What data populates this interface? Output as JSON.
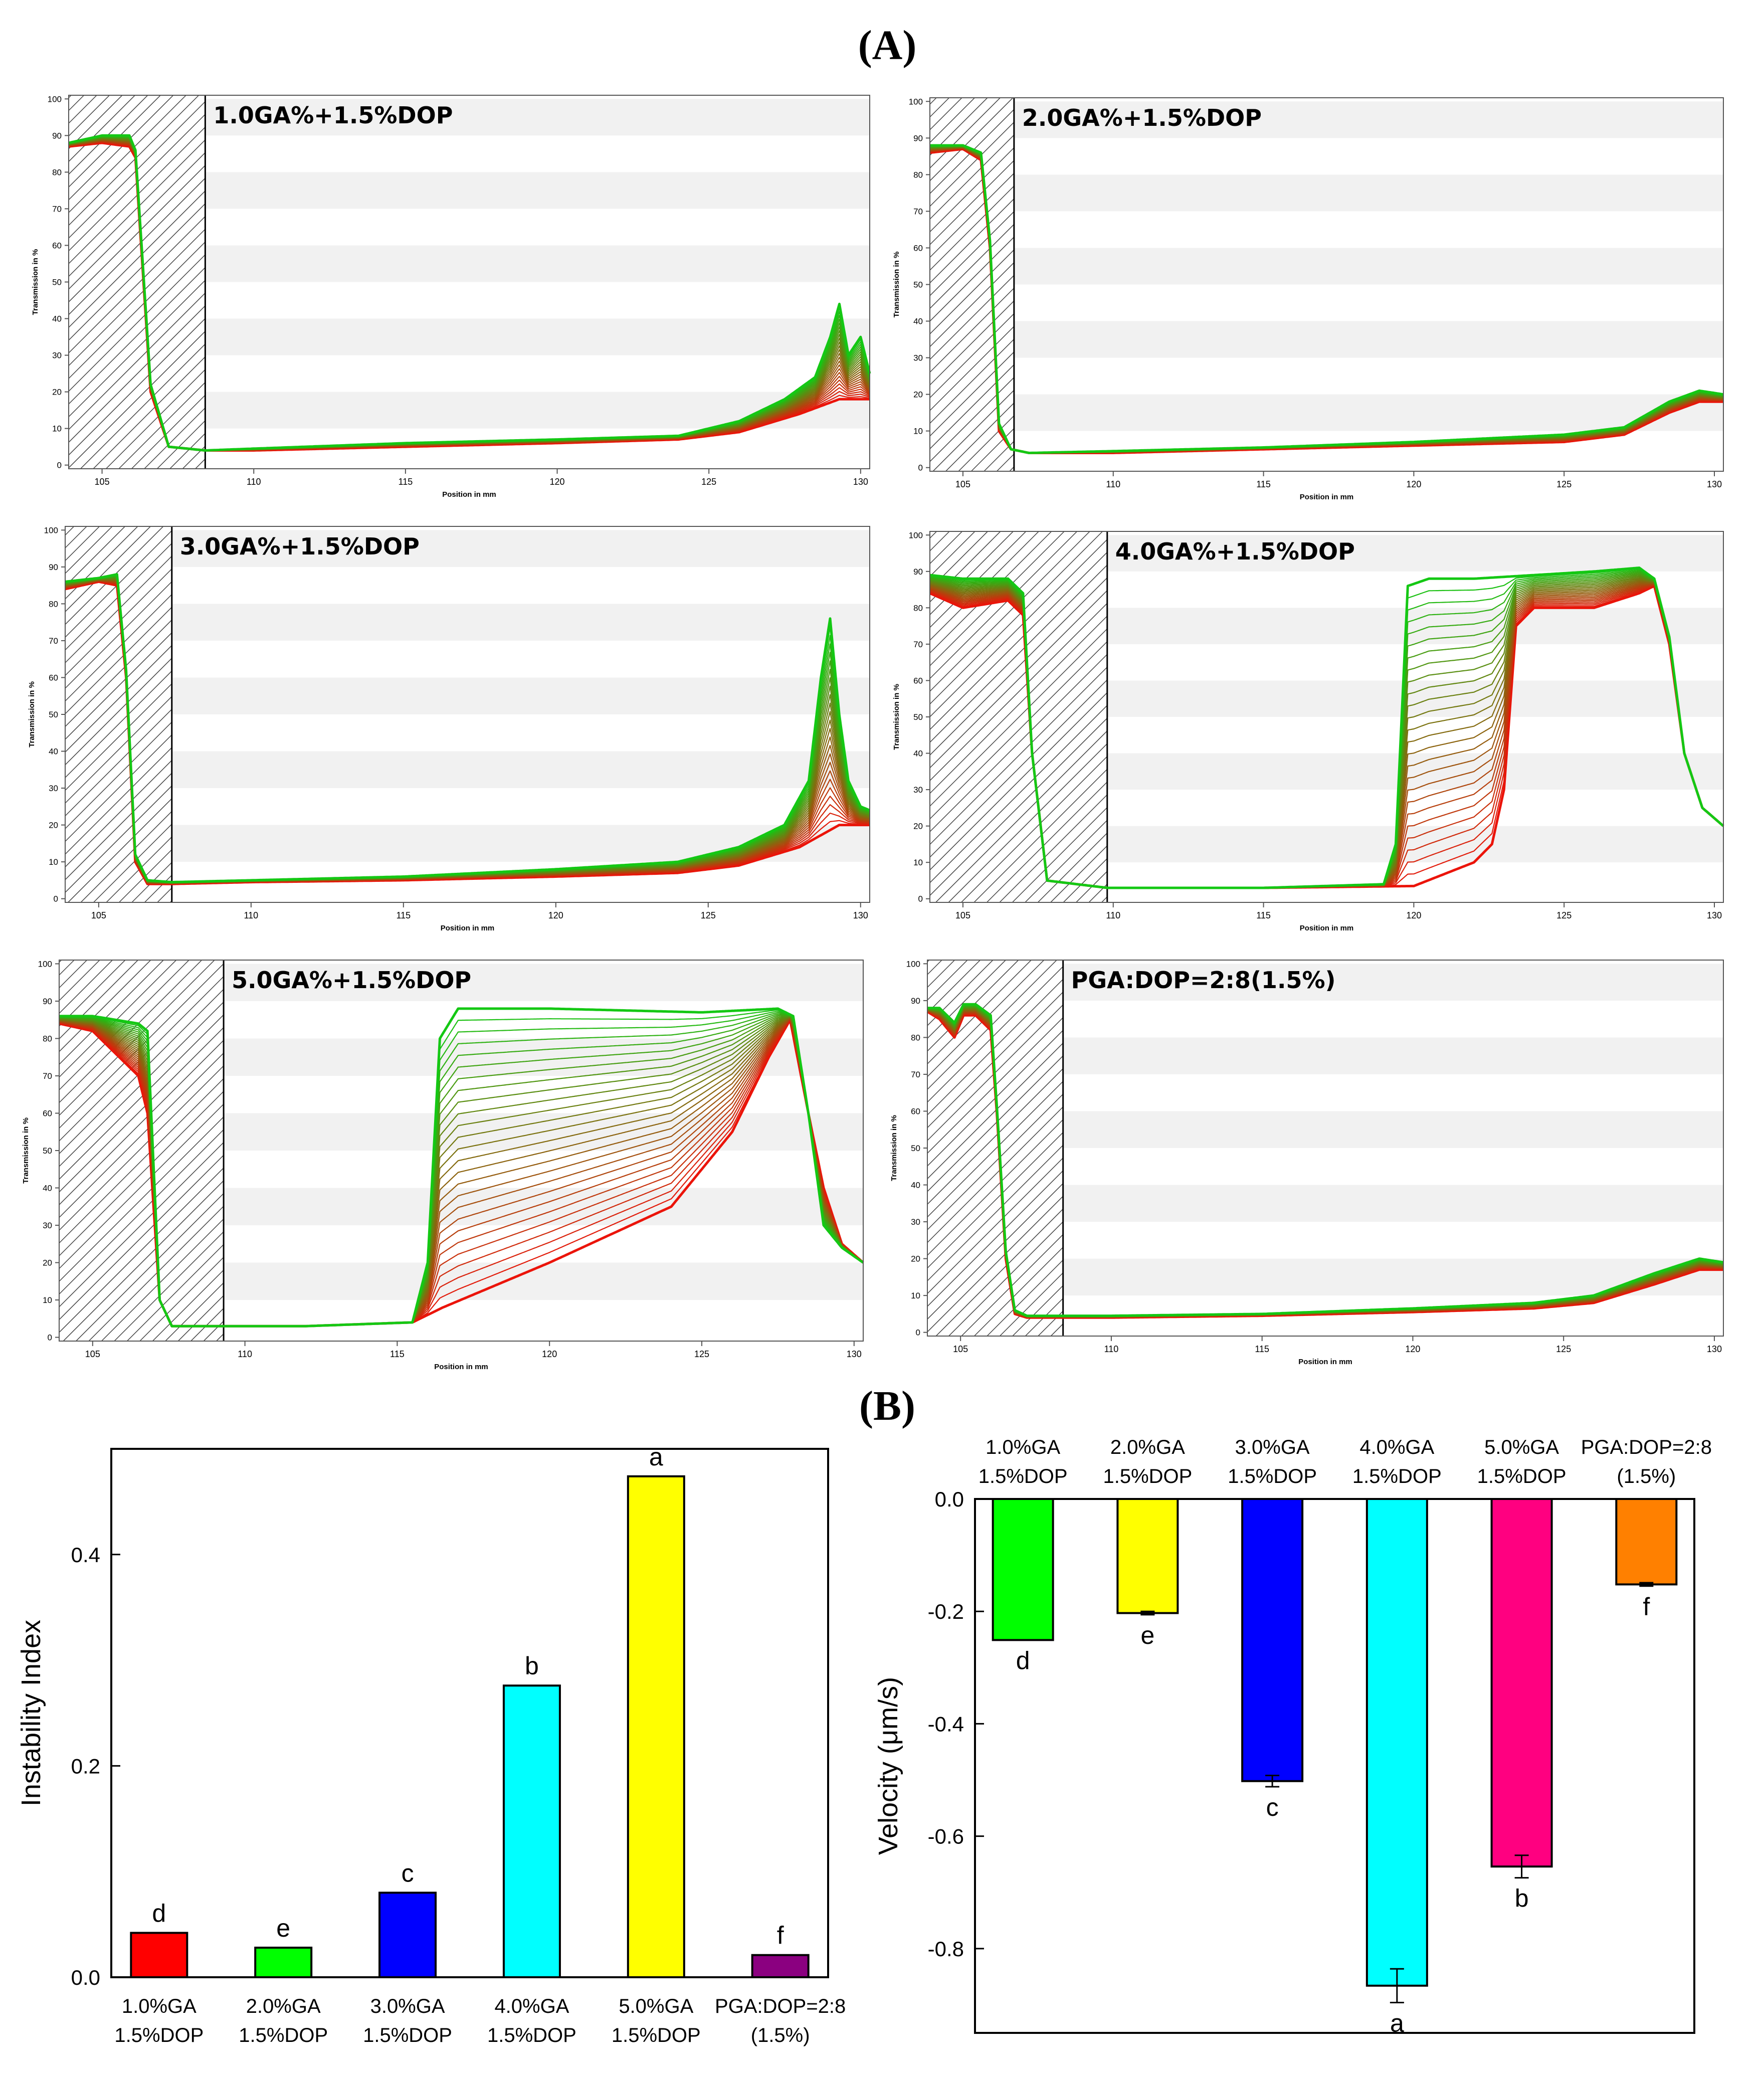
{
  "figure": {
    "label_a": "(A)",
    "label_b": "(B)"
  },
  "chart_data": [
    {
      "type": "line",
      "title": "1.0GA%+1.5%DOP",
      "xlabel": "Position in mm",
      "ylabel": "Transmission in %",
      "xlim": [
        103.9,
        130.3
      ],
      "ylim": [
        -1,
        101
      ],
      "xticks": [
        "105",
        "110",
        "115",
        "120",
        "125",
        "130"
      ],
      "yticks": [
        "0",
        "10",
        "20",
        "30",
        "40",
        "50",
        "60",
        "70",
        "80",
        "90",
        "100"
      ],
      "hatched_region_end_mm": 108.4,
      "series": [
        {
          "name": "first profile (red)",
          "x": [
            103.9,
            105.0,
            105.9,
            106.1,
            106.6,
            107.2,
            108.4,
            110,
            115,
            120,
            124,
            126,
            128,
            129.3,
            130.3
          ],
          "y": [
            87,
            88,
            87,
            84,
            20,
            5,
            4,
            4,
            5,
            6,
            7,
            9,
            14,
            18,
            18
          ]
        },
        {
          "name": "last profile (green)",
          "x": [
            103.9,
            105.0,
            105.9,
            106.1,
            106.6,
            107.2,
            108.4,
            110,
            115,
            120,
            124,
            126,
            127.5,
            128.5,
            129.0,
            129.3,
            129.6,
            130.0,
            130.3
          ],
          "y": [
            88,
            90,
            90,
            86,
            22,
            5,
            4,
            4.5,
            6,
            7,
            8,
            12,
            18,
            24,
            35,
            44,
            30,
            35,
            25
          ]
        }
      ]
    },
    {
      "type": "line",
      "title": "2.0GA%+1.5%DOP",
      "xlabel": "Position in mm",
      "ylabel": "Transmission in %",
      "xlim": [
        103.9,
        130.3
      ],
      "ylim": [
        -1,
        101
      ],
      "xticks": [
        "105",
        "110",
        "115",
        "120",
        "125",
        "130"
      ],
      "yticks": [
        "0",
        "10",
        "20",
        "30",
        "40",
        "50",
        "60",
        "70",
        "80",
        "90",
        "100"
      ],
      "hatched_region_end_mm": 106.7,
      "series": [
        {
          "name": "first profile (red)",
          "x": [
            103.9,
            105.0,
            105.6,
            105.9,
            106.2,
            106.6,
            107.2,
            110,
            115,
            120,
            125,
            127,
            128.5,
            129.5,
            130.3
          ],
          "y": [
            86,
            87,
            84,
            60,
            10,
            5,
            4,
            4,
            5,
            6,
            7,
            9,
            15,
            18,
            18
          ]
        },
        {
          "name": "last profile (green)",
          "x": [
            103.9,
            105.0,
            105.6,
            105.9,
            106.2,
            106.6,
            107.2,
            110,
            115,
            120,
            125,
            127,
            128.5,
            129.5,
            130.3
          ],
          "y": [
            88,
            88,
            86,
            62,
            12,
            5,
            4,
            4.5,
            5.5,
            7,
            9,
            11,
            18,
            21,
            20
          ]
        }
      ]
    },
    {
      "type": "line",
      "title": "3.0GA%+1.5%DOP",
      "xlabel": "Position in mm",
      "ylabel": "Transmission in %",
      "xlim": [
        103.9,
        130.3
      ],
      "ylim": [
        -1,
        101
      ],
      "xticks": [
        "105",
        "110",
        "115",
        "120",
        "125",
        "130"
      ],
      "yticks": [
        "0",
        "10",
        "20",
        "30",
        "40",
        "50",
        "60",
        "70",
        "80",
        "90",
        "100"
      ],
      "hatched_region_end_mm": 107.4,
      "series": [
        {
          "name": "first profile (red)",
          "x": [
            103.9,
            105.0,
            105.6,
            105.9,
            106.2,
            106.6,
            107.4,
            110,
            115,
            120,
            124,
            126,
            128,
            129.3,
            130.3
          ],
          "y": [
            84,
            86,
            85,
            60,
            10,
            4,
            4,
            4.5,
            5,
            6,
            7,
            9,
            14,
            20,
            20
          ]
        },
        {
          "name": "last profile (green)",
          "x": [
            103.9,
            105.0,
            105.6,
            105.9,
            106.2,
            106.6,
            107.4,
            110,
            115,
            120,
            124,
            126,
            127.5,
            128.3,
            128.7,
            129.0,
            129.3,
            129.6,
            130.0,
            130.3
          ],
          "y": [
            86,
            87,
            88,
            62,
            12,
            5,
            4.5,
            5,
            6,
            8,
            10,
            14,
            20,
            32,
            60,
            76,
            50,
            32,
            25,
            24
          ]
        }
      ]
    },
    {
      "type": "line",
      "title": "4.0GA%+1.5%DOP",
      "xlabel": "Position in mm",
      "ylabel": "Transmission in %",
      "xlim": [
        103.9,
        130.3
      ],
      "ylim": [
        -1,
        101
      ],
      "xticks": [
        "105",
        "110",
        "115",
        "120",
        "125",
        "130"
      ],
      "yticks": [
        "0",
        "10",
        "20",
        "30",
        "40",
        "50",
        "60",
        "70",
        "80",
        "90",
        "100"
      ],
      "hatched_region_end_mm": 109.8,
      "series": [
        {
          "name": "first profile (red)",
          "x": [
            103.9,
            105.0,
            106.5,
            107.0,
            107.3,
            107.8,
            109.8,
            115,
            120,
            122.0,
            122.6,
            123.0,
            123.4,
            124.0,
            126.0,
            127.5,
            128.0,
            128.5,
            129.0,
            129.6,
            130.3
          ],
          "y": [
            84,
            80,
            82,
            78,
            40,
            5,
            3,
            3,
            3.5,
            10,
            15,
            30,
            75,
            80,
            80,
            84,
            86,
            70,
            40,
            25,
            20
          ]
        },
        {
          "name": "last profile (green)",
          "x": [
            103.9,
            105.0,
            106.5,
            107.0,
            107.3,
            107.8,
            109.8,
            115,
            119.0,
            119.4,
            119.8,
            120.5,
            122.0,
            124.0,
            126.0,
            127.5,
            128.0,
            128.5,
            129.0,
            129.6,
            130.3
          ],
          "y": [
            89,
            88,
            88,
            84,
            40,
            5,
            3,
            3,
            4,
            15,
            86,
            88,
            88,
            89,
            90,
            91,
            88,
            72,
            40,
            25,
            20
          ]
        }
      ]
    },
    {
      "type": "line",
      "title": "5.0GA%+1.5%DOP",
      "xlabel": "Position in mm",
      "ylabel": "Transmission in %",
      "xlim": [
        103.9,
        130.3
      ],
      "ylim": [
        -1,
        101
      ],
      "xticks": [
        "105",
        "110",
        "115",
        "120",
        "125",
        "130"
      ],
      "yticks": [
        "0",
        "10",
        "20",
        "30",
        "40",
        "50",
        "60",
        "70",
        "80",
        "90",
        "100"
      ],
      "hatched_region_end_mm": 109.3,
      "series": [
        {
          "name": "first profile (red)",
          "x": [
            103.9,
            105.0,
            106.5,
            106.8,
            107.2,
            107.6,
            109.3,
            112,
            115.5,
            116.5,
            120,
            124,
            126,
            127.2,
            127.9,
            128.5,
            129.0,
            129.6,
            130.3
          ],
          "y": [
            84,
            82,
            70,
            60,
            10,
            3,
            3,
            3,
            4,
            8,
            20,
            35,
            55,
            75,
            85,
            60,
            40,
            25,
            20
          ]
        },
        {
          "name": "last profile (green)",
          "x": [
            103.9,
            105.0,
            106.5,
            106.8,
            107.2,
            107.6,
            109.3,
            112,
            115.5,
            116.0,
            116.4,
            117.0,
            120,
            125,
            127.5,
            128.0,
            128.5,
            129.0,
            129.6,
            130.3
          ],
          "y": [
            86,
            86,
            84,
            82,
            10,
            3,
            3,
            3,
            4,
            20,
            80,
            88,
            88,
            87,
            88,
            86,
            60,
            30,
            24,
            20
          ]
        }
      ]
    },
    {
      "type": "line",
      "title": "PGA:DOP=2:8(1.5%)",
      "xlabel": "Position in mm",
      "ylabel": "Transmission in %",
      "xlim": [
        103.9,
        130.3
      ],
      "ylim": [
        -1,
        101
      ],
      "xticks": [
        "105",
        "110",
        "115",
        "120",
        "125",
        "130"
      ],
      "yticks": [
        "0",
        "10",
        "20",
        "30",
        "40",
        "50",
        "60",
        "70",
        "80",
        "90",
        "100"
      ],
      "hatched_region_end_mm": 108.4,
      "series": [
        {
          "name": "first profile (red)",
          "x": [
            103.9,
            104.3,
            104.8,
            105.1,
            105.5,
            106.0,
            106.2,
            106.5,
            106.8,
            107.2,
            108.4,
            110,
            115,
            120,
            124,
            126,
            128,
            129.5,
            130.3
          ],
          "y": [
            87,
            85,
            80,
            86,
            86,
            82,
            60,
            20,
            5,
            4,
            4,
            4,
            4.5,
            5.5,
            6.5,
            8,
            13,
            17,
            17
          ]
        },
        {
          "name": "last profile (green)",
          "x": [
            103.9,
            104.3,
            104.8,
            105.1,
            105.5,
            106.0,
            106.2,
            106.5,
            106.8,
            107.2,
            108.4,
            110,
            115,
            120,
            124,
            126,
            128,
            129.5,
            130.3
          ],
          "y": [
            88,
            88,
            84,
            89,
            89,
            86,
            62,
            22,
            6,
            4.5,
            4.5,
            4.5,
            5,
            6.5,
            8,
            10,
            16,
            20,
            19
          ]
        }
      ]
    },
    {
      "type": "bar",
      "title": "",
      "xlabel": "",
      "ylabel": "Instability Index",
      "ylim": [
        0,
        0.5
      ],
      "yticks": [
        "0.0",
        "0.2",
        "0.4"
      ],
      "categories": [
        [
          "1.0%GA",
          "1.5%DOP"
        ],
        [
          "2.0%GA",
          "1.5%DOP"
        ],
        [
          "3.0%GA",
          "1.5%DOP"
        ],
        [
          "4.0%GA",
          "1.5%DOP"
        ],
        [
          "5.0%GA",
          "1.5%DOP"
        ],
        [
          "PGA:DOP=2:8",
          "(1.5%)"
        ]
      ],
      "values": [
        0.042,
        0.028,
        0.08,
        0.276,
        0.474,
        0.021
      ],
      "letters": [
        "d",
        "e",
        "c",
        "b",
        "a",
        "f"
      ],
      "colors": [
        "#ff0000",
        "#00ff00",
        "#0000ff",
        "#00ffff",
        "#ffff00",
        "#8b0080"
      ]
    },
    {
      "type": "bar",
      "title": "",
      "xlabel": "",
      "ylabel": "Velocity (μm/s)",
      "ylim": [
        -0.95,
        0.0
      ],
      "yticks": [
        "0.0",
        "-0.2",
        "-0.4",
        "-0.6",
        "-0.8"
      ],
      "categories": [
        [
          "1.0%GA",
          "1.5%DOP"
        ],
        [
          "2.0%GA",
          "1.5%DOP"
        ],
        [
          "3.0%GA",
          "1.5%DOP"
        ],
        [
          "4.0%GA",
          "1.5%DOP"
        ],
        [
          "5.0%GA",
          "1.5%DOP"
        ],
        [
          "PGA:DOP=2:8",
          "(1.5%)"
        ]
      ],
      "values": [
        -0.251,
        -0.203,
        -0.502,
        -0.866,
        -0.654,
        -0.152
      ],
      "errors": [
        0.0,
        0.003,
        0.01,
        0.03,
        0.02,
        0.003
      ],
      "letters": [
        "d",
        "e",
        "c",
        "a",
        "b",
        "f"
      ],
      "colors": [
        "#00ff00",
        "#ffff00",
        "#0000ff",
        "#00ffff",
        "#ff0080",
        "#ff8000"
      ]
    }
  ]
}
